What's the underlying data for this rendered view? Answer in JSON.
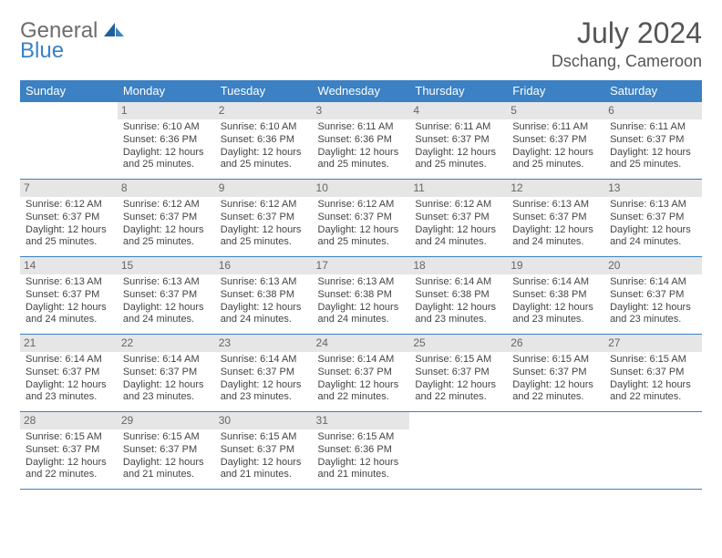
{
  "logo": {
    "general": "General",
    "blue": "Blue"
  },
  "title": {
    "month": "July 2024",
    "location": "Dschang, Cameroon"
  },
  "colors": {
    "header_bg": "#3b81c3",
    "header_fg": "#ffffff",
    "daynum_bg": "#e6e6e6",
    "daynum_fg": "#666666",
    "rule": "#3b81c3",
    "text": "#444444"
  },
  "weekdays": [
    "Sunday",
    "Monday",
    "Tuesday",
    "Wednesday",
    "Thursday",
    "Friday",
    "Saturday"
  ],
  "weeks": [
    [
      {
        "n": "",
        "sr": "",
        "ss": "",
        "dl": ""
      },
      {
        "n": "1",
        "sr": "Sunrise: 6:10 AM",
        "ss": "Sunset: 6:36 PM",
        "dl": "Daylight: 12 hours and 25 minutes."
      },
      {
        "n": "2",
        "sr": "Sunrise: 6:10 AM",
        "ss": "Sunset: 6:36 PM",
        "dl": "Daylight: 12 hours and 25 minutes."
      },
      {
        "n": "3",
        "sr": "Sunrise: 6:11 AM",
        "ss": "Sunset: 6:36 PM",
        "dl": "Daylight: 12 hours and 25 minutes."
      },
      {
        "n": "4",
        "sr": "Sunrise: 6:11 AM",
        "ss": "Sunset: 6:37 PM",
        "dl": "Daylight: 12 hours and 25 minutes."
      },
      {
        "n": "5",
        "sr": "Sunrise: 6:11 AM",
        "ss": "Sunset: 6:37 PM",
        "dl": "Daylight: 12 hours and 25 minutes."
      },
      {
        "n": "6",
        "sr": "Sunrise: 6:11 AM",
        "ss": "Sunset: 6:37 PM",
        "dl": "Daylight: 12 hours and 25 minutes."
      }
    ],
    [
      {
        "n": "7",
        "sr": "Sunrise: 6:12 AM",
        "ss": "Sunset: 6:37 PM",
        "dl": "Daylight: 12 hours and 25 minutes."
      },
      {
        "n": "8",
        "sr": "Sunrise: 6:12 AM",
        "ss": "Sunset: 6:37 PM",
        "dl": "Daylight: 12 hours and 25 minutes."
      },
      {
        "n": "9",
        "sr": "Sunrise: 6:12 AM",
        "ss": "Sunset: 6:37 PM",
        "dl": "Daylight: 12 hours and 25 minutes."
      },
      {
        "n": "10",
        "sr": "Sunrise: 6:12 AM",
        "ss": "Sunset: 6:37 PM",
        "dl": "Daylight: 12 hours and 25 minutes."
      },
      {
        "n": "11",
        "sr": "Sunrise: 6:12 AM",
        "ss": "Sunset: 6:37 PM",
        "dl": "Daylight: 12 hours and 24 minutes."
      },
      {
        "n": "12",
        "sr": "Sunrise: 6:13 AM",
        "ss": "Sunset: 6:37 PM",
        "dl": "Daylight: 12 hours and 24 minutes."
      },
      {
        "n": "13",
        "sr": "Sunrise: 6:13 AM",
        "ss": "Sunset: 6:37 PM",
        "dl": "Daylight: 12 hours and 24 minutes."
      }
    ],
    [
      {
        "n": "14",
        "sr": "Sunrise: 6:13 AM",
        "ss": "Sunset: 6:37 PM",
        "dl": "Daylight: 12 hours and 24 minutes."
      },
      {
        "n": "15",
        "sr": "Sunrise: 6:13 AM",
        "ss": "Sunset: 6:37 PM",
        "dl": "Daylight: 12 hours and 24 minutes."
      },
      {
        "n": "16",
        "sr": "Sunrise: 6:13 AM",
        "ss": "Sunset: 6:38 PM",
        "dl": "Daylight: 12 hours and 24 minutes."
      },
      {
        "n": "17",
        "sr": "Sunrise: 6:13 AM",
        "ss": "Sunset: 6:38 PM",
        "dl": "Daylight: 12 hours and 24 minutes."
      },
      {
        "n": "18",
        "sr": "Sunrise: 6:14 AM",
        "ss": "Sunset: 6:38 PM",
        "dl": "Daylight: 12 hours and 23 minutes."
      },
      {
        "n": "19",
        "sr": "Sunrise: 6:14 AM",
        "ss": "Sunset: 6:38 PM",
        "dl": "Daylight: 12 hours and 23 minutes."
      },
      {
        "n": "20",
        "sr": "Sunrise: 6:14 AM",
        "ss": "Sunset: 6:37 PM",
        "dl": "Daylight: 12 hours and 23 minutes."
      }
    ],
    [
      {
        "n": "21",
        "sr": "Sunrise: 6:14 AM",
        "ss": "Sunset: 6:37 PM",
        "dl": "Daylight: 12 hours and 23 minutes."
      },
      {
        "n": "22",
        "sr": "Sunrise: 6:14 AM",
        "ss": "Sunset: 6:37 PM",
        "dl": "Daylight: 12 hours and 23 minutes."
      },
      {
        "n": "23",
        "sr": "Sunrise: 6:14 AM",
        "ss": "Sunset: 6:37 PM",
        "dl": "Daylight: 12 hours and 23 minutes."
      },
      {
        "n": "24",
        "sr": "Sunrise: 6:14 AM",
        "ss": "Sunset: 6:37 PM",
        "dl": "Daylight: 12 hours and 22 minutes."
      },
      {
        "n": "25",
        "sr": "Sunrise: 6:15 AM",
        "ss": "Sunset: 6:37 PM",
        "dl": "Daylight: 12 hours and 22 minutes."
      },
      {
        "n": "26",
        "sr": "Sunrise: 6:15 AM",
        "ss": "Sunset: 6:37 PM",
        "dl": "Daylight: 12 hours and 22 minutes."
      },
      {
        "n": "27",
        "sr": "Sunrise: 6:15 AM",
        "ss": "Sunset: 6:37 PM",
        "dl": "Daylight: 12 hours and 22 minutes."
      }
    ],
    [
      {
        "n": "28",
        "sr": "Sunrise: 6:15 AM",
        "ss": "Sunset: 6:37 PM",
        "dl": "Daylight: 12 hours and 22 minutes."
      },
      {
        "n": "29",
        "sr": "Sunrise: 6:15 AM",
        "ss": "Sunset: 6:37 PM",
        "dl": "Daylight: 12 hours and 21 minutes."
      },
      {
        "n": "30",
        "sr": "Sunrise: 6:15 AM",
        "ss": "Sunset: 6:37 PM",
        "dl": "Daylight: 12 hours and 21 minutes."
      },
      {
        "n": "31",
        "sr": "Sunrise: 6:15 AM",
        "ss": "Sunset: 6:36 PM",
        "dl": "Daylight: 12 hours and 21 minutes."
      },
      {
        "n": "",
        "sr": "",
        "ss": "",
        "dl": ""
      },
      {
        "n": "",
        "sr": "",
        "ss": "",
        "dl": ""
      },
      {
        "n": "",
        "sr": "",
        "ss": "",
        "dl": ""
      }
    ]
  ]
}
